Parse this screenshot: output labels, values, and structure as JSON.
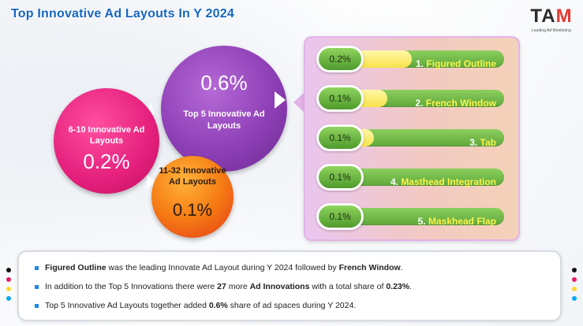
{
  "title": "Top Innovative Ad Layouts In Y 2024",
  "logo": {
    "mark_main": "TA",
    "mark_accent": "M",
    "tagline": "Leading Ad Monitoring"
  },
  "circles": {
    "top5": {
      "value": "0.6%",
      "label": "Top 5  Innovative Ad Layouts"
    },
    "r6_10": {
      "label": "6-10  Innovative Ad Layouts",
      "value": "0.2%"
    },
    "r11_32": {
      "label": "11-32 Innovative Ad Layouts",
      "value": "0.1%"
    }
  },
  "ranking": [
    {
      "value": "0.2%",
      "rank": "1. ",
      "name": "Figured Outline",
      "fill": 0.45
    },
    {
      "value": "0.1%",
      "rank": "2. ",
      "name": "French Window",
      "fill": 0.3
    },
    {
      "value": "0.1%",
      "rank": "3. ",
      "name": "Tab",
      "fill": 0.22
    },
    {
      "value": "0.1%",
      "rank": "4. ",
      "name": "Masthead Integration",
      "fill": 0.0
    },
    {
      "value": "0.1%",
      "rank": "5. ",
      "name": "Maskhead Flap",
      "fill": 0.0
    }
  ],
  "summary": {
    "line1": {
      "b1": "Figured Outline",
      "t1": " was the leading Innovate Ad Layout during Y 2024 followed by ",
      "b2": "French Window",
      "t2": "."
    },
    "line2": {
      "t1": "In addition to the Top 5 Innovations there were ",
      "b1": "27",
      "t2": " more ",
      "b2": "Ad Innovations",
      "t3": " with a total share of ",
      "b3": "0.23%",
      "t4": "."
    },
    "line3": {
      "t1": "Top 5 Innovative Ad Layouts together added ",
      "b1": "0.6%",
      "t2": " share of ad spaces during Y 2024."
    }
  },
  "colors": {
    "title": "#1565c0",
    "top5_circle": "#8e3fb6",
    "r6_10_circle": "#e41f7c",
    "r11_32_circle": "#f57c14",
    "bar_green": "#5ea83a",
    "highlight_yellow": "#fff34d"
  }
}
